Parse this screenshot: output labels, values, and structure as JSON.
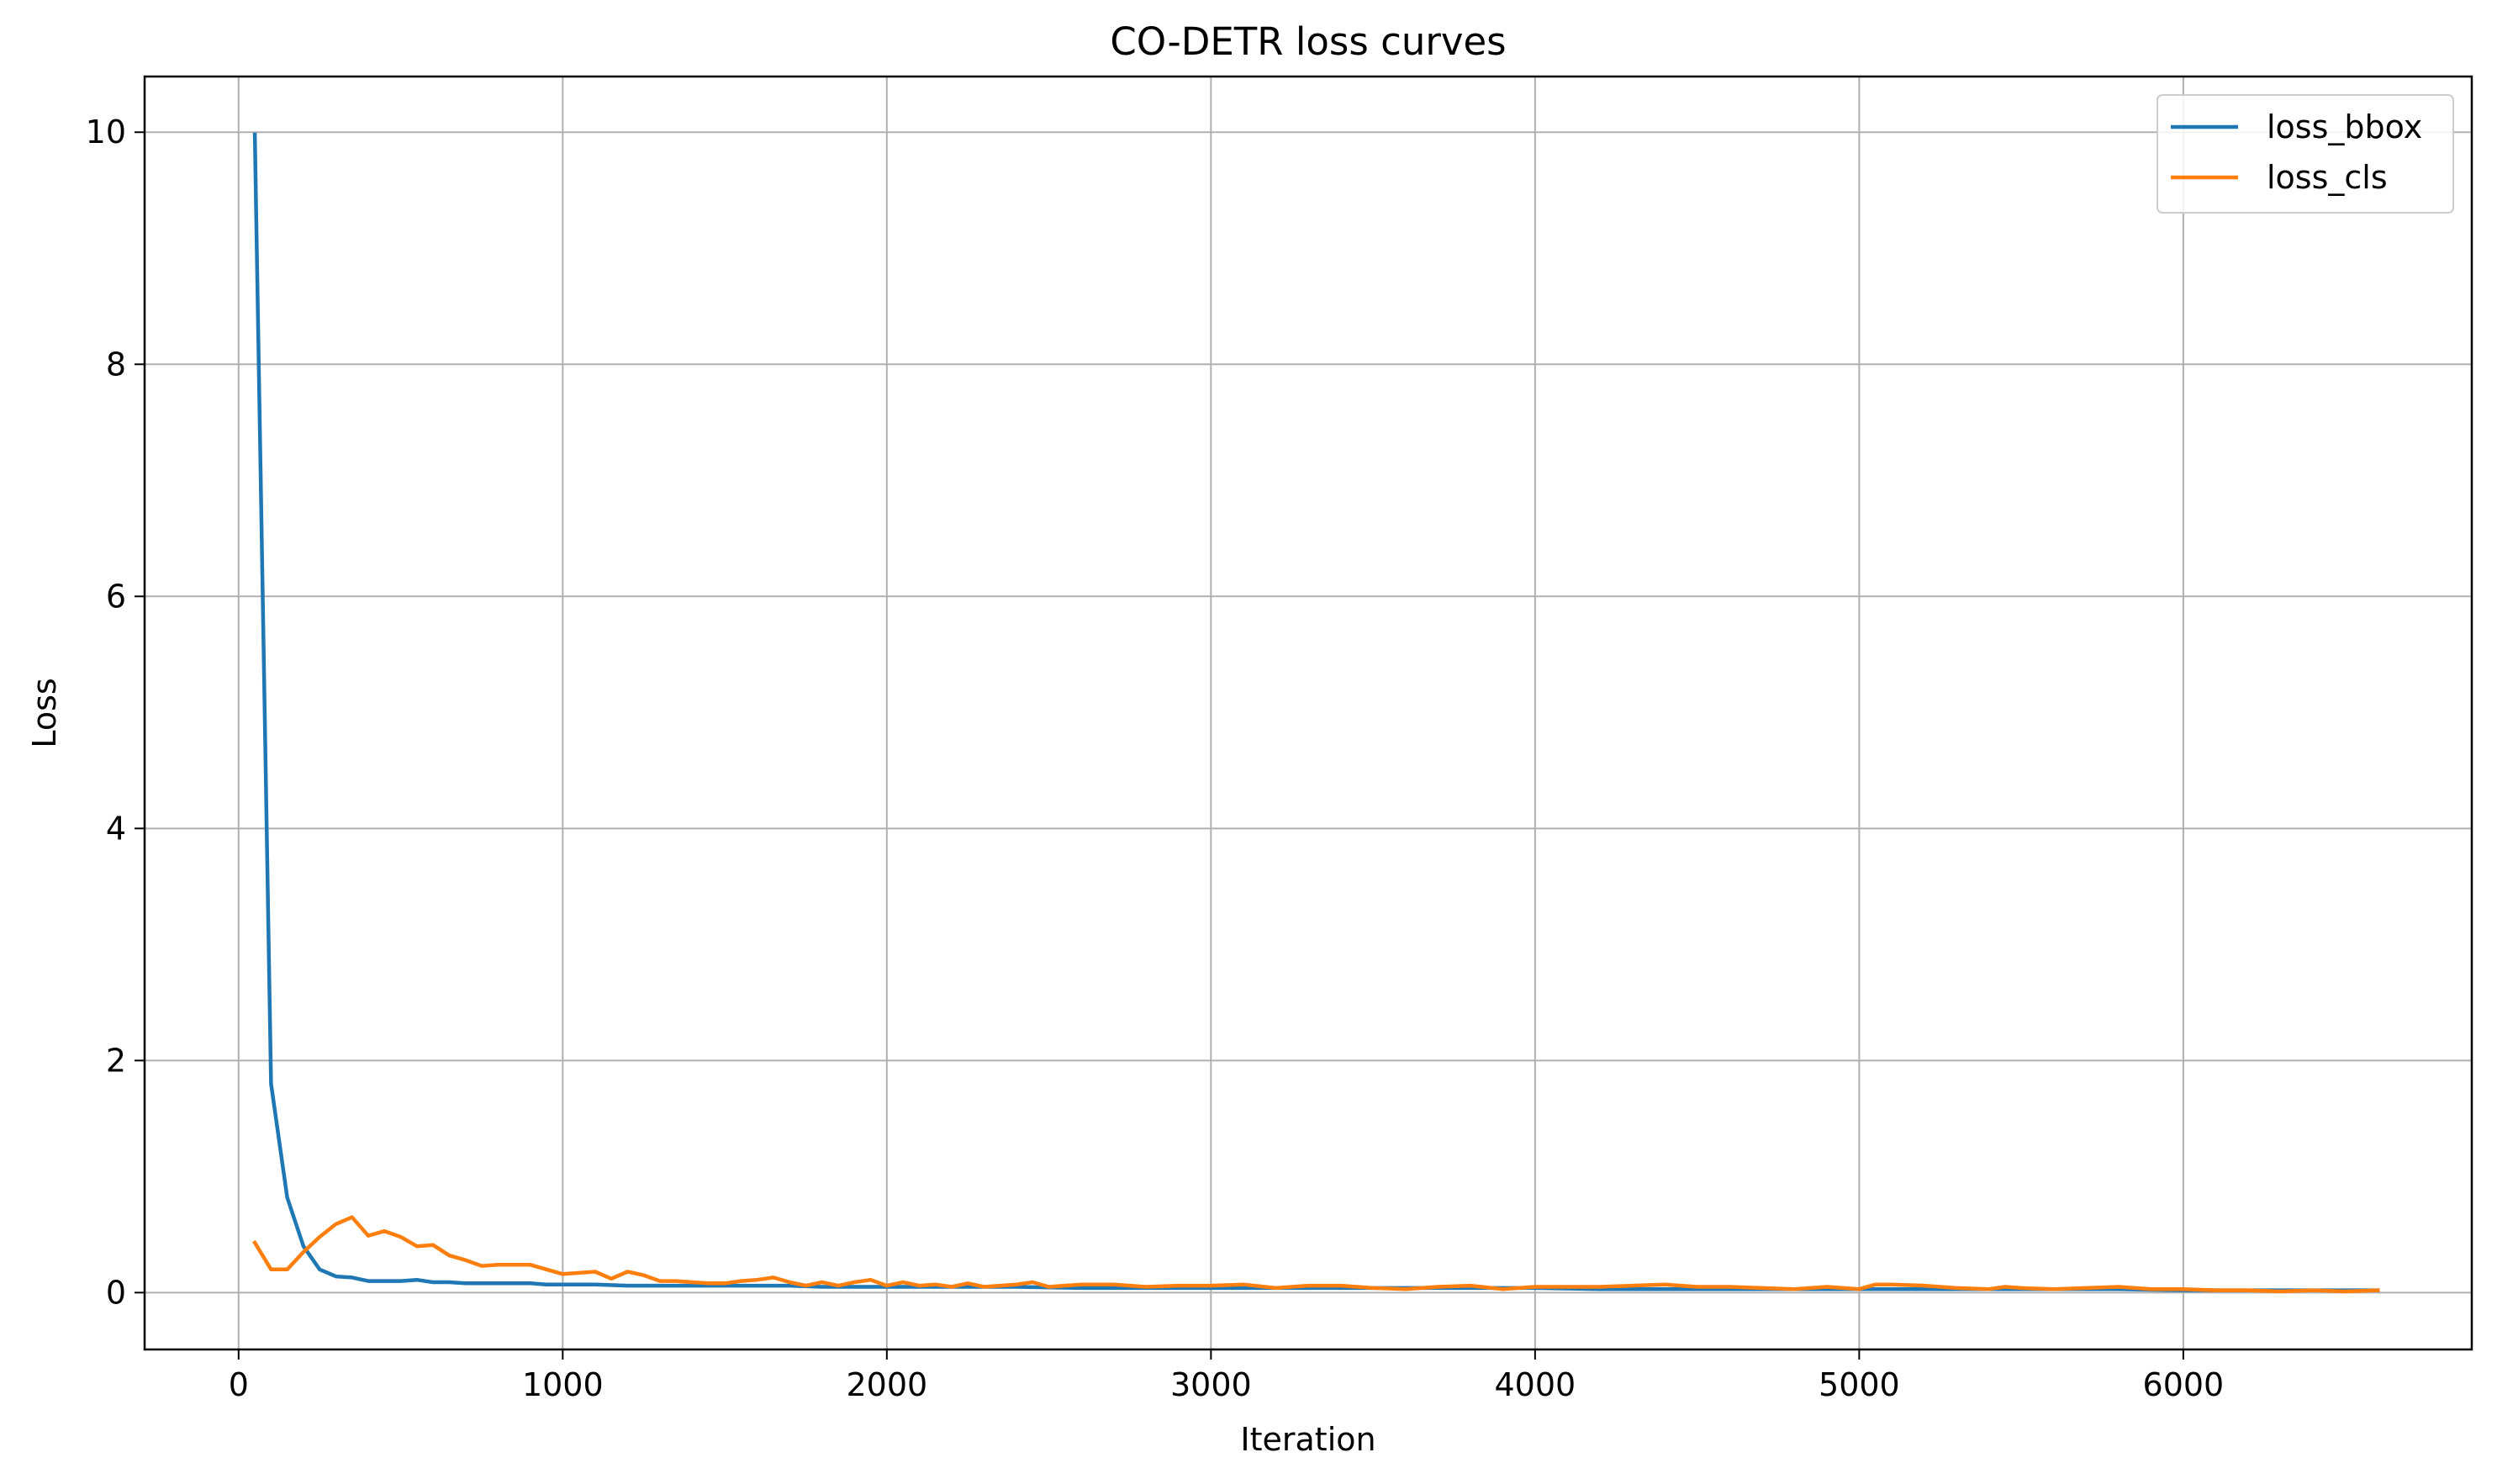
{
  "chart_data": {
    "type": "line",
    "title": "CO-DETR loss curves",
    "xlabel": "Iteration",
    "ylabel": "Loss",
    "xlim": [
      -290,
      6890
    ],
    "ylim": [
      -0.49,
      10.48
    ],
    "xticks": [
      0,
      1000,
      2000,
      3000,
      4000,
      5000,
      6000
    ],
    "yticks": [
      0,
      2,
      4,
      6,
      8,
      10
    ],
    "grid": true,
    "legend_position": "top-right",
    "series": [
      {
        "name": "loss_bbox",
        "color": "#1f77b4",
        "x": [
          50,
          100,
          150,
          200,
          250,
          300,
          350,
          400,
          450,
          500,
          550,
          600,
          650,
          700,
          750,
          800,
          850,
          900,
          950,
          1000,
          1100,
          1200,
          1300,
          1400,
          1500,
          1600,
          1700,
          1800,
          1900,
          2000,
          2200,
          2400,
          2600,
          2800,
          3000,
          3200,
          3400,
          3600,
          3800,
          4000,
          4200,
          4400,
          4600,
          4800,
          5000,
          5200,
          5400,
          5600,
          5800,
          6000,
          6200,
          6400,
          6600
        ],
        "y": [
          9.98,
          1.8,
          0.82,
          0.4,
          0.2,
          0.14,
          0.13,
          0.1,
          0.1,
          0.1,
          0.11,
          0.09,
          0.09,
          0.08,
          0.08,
          0.08,
          0.08,
          0.08,
          0.07,
          0.07,
          0.07,
          0.06,
          0.06,
          0.06,
          0.06,
          0.06,
          0.06,
          0.05,
          0.05,
          0.05,
          0.05,
          0.05,
          0.04,
          0.04,
          0.04,
          0.04,
          0.04,
          0.04,
          0.04,
          0.04,
          0.03,
          0.03,
          0.03,
          0.03,
          0.03,
          0.03,
          0.03,
          0.03,
          0.03,
          0.02,
          0.02,
          0.02,
          0.02
        ]
      },
      {
        "name": "loss_cls",
        "color": "#ff7f0e",
        "x": [
          50,
          100,
          150,
          200,
          250,
          300,
          350,
          400,
          450,
          500,
          550,
          600,
          650,
          700,
          750,
          800,
          850,
          900,
          950,
          1000,
          1100,
          1150,
          1200,
          1250,
          1300,
          1350,
          1400,
          1450,
          1500,
          1550,
          1600,
          1650,
          1700,
          1750,
          1800,
          1850,
          1900,
          1950,
          2000,
          2050,
          2100,
          2150,
          2200,
          2250,
          2300,
          2350,
          2400,
          2450,
          2500,
          2600,
          2700,
          2800,
          2900,
          3000,
          3100,
          3200,
          3300,
          3400,
          3500,
          3600,
          3700,
          3800,
          3900,
          4000,
          4100,
          4200,
          4300,
          4400,
          4500,
          4600,
          4700,
          4800,
          4900,
          5000,
          5050,
          5100,
          5200,
          5300,
          5400,
          5450,
          5500,
          5600,
          5700,
          5800,
          5900,
          6000,
          6100,
          6200,
          6300,
          6400,
          6500,
          6600
        ],
        "y": [
          0.43,
          0.2,
          0.2,
          0.35,
          0.48,
          0.59,
          0.65,
          0.49,
          0.53,
          0.48,
          0.4,
          0.41,
          0.32,
          0.28,
          0.23,
          0.24,
          0.24,
          0.24,
          0.2,
          0.16,
          0.18,
          0.12,
          0.18,
          0.15,
          0.1,
          0.1,
          0.09,
          0.08,
          0.08,
          0.1,
          0.11,
          0.13,
          0.09,
          0.06,
          0.09,
          0.06,
          0.09,
          0.11,
          0.06,
          0.09,
          0.06,
          0.07,
          0.05,
          0.08,
          0.05,
          0.06,
          0.07,
          0.09,
          0.05,
          0.07,
          0.07,
          0.05,
          0.06,
          0.06,
          0.07,
          0.04,
          0.06,
          0.06,
          0.04,
          0.03,
          0.05,
          0.06,
          0.03,
          0.05,
          0.05,
          0.05,
          0.06,
          0.07,
          0.05,
          0.05,
          0.04,
          0.03,
          0.05,
          0.03,
          0.07,
          0.07,
          0.06,
          0.04,
          0.03,
          0.05,
          0.04,
          0.03,
          0.04,
          0.05,
          0.03,
          0.03,
          0.02,
          0.02,
          0.01,
          0.02,
          0.01,
          0.02
        ]
      }
    ]
  }
}
